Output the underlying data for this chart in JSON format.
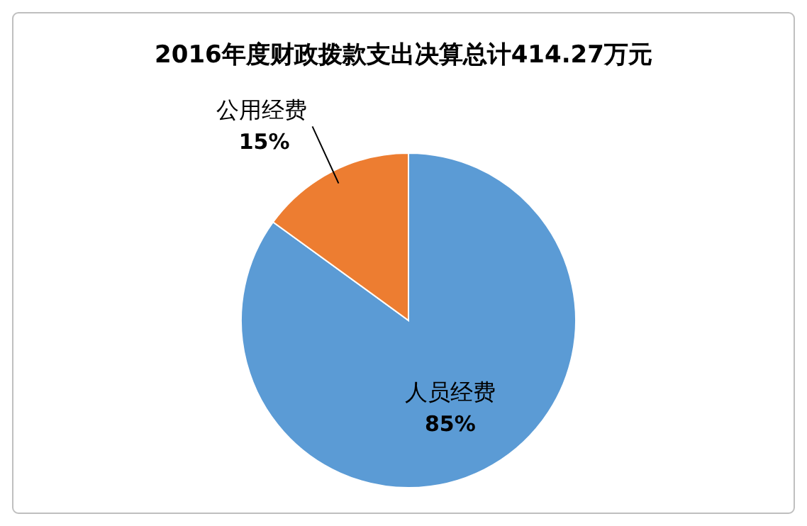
{
  "chart_data": {
    "type": "pie",
    "title": "2016年度财政拨款支出决算总计414.27万元",
    "categories": [
      "人员经费",
      "公用经费"
    ],
    "values": [
      85,
      15
    ],
    "colors": [
      "#5b9bd5",
      "#ed7d31"
    ],
    "value_labels": [
      "85%",
      "15%"
    ]
  }
}
